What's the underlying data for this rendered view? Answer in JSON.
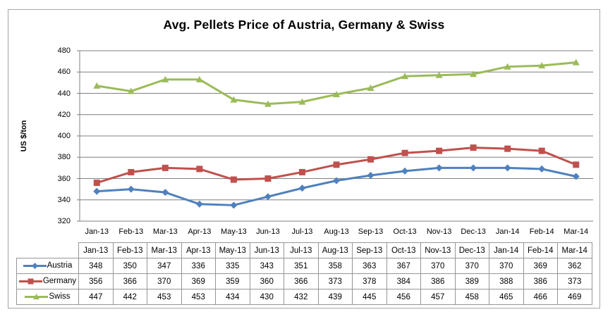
{
  "chart_data": {
    "type": "line",
    "title": "Avg. Pellets Price of Austria, Germany & Swiss",
    "ylabel": "US $/ton",
    "xlabel": "",
    "ylim": [
      320,
      480
    ],
    "ytick_step": 20,
    "grid": true,
    "legend_position": "table-left",
    "categories": [
      "Jan-13",
      "Feb-13",
      "Mar-13",
      "Apr-13",
      "May-13",
      "Jun-13",
      "Jul-13",
      "Aug-13",
      "Sep-13",
      "Oct-13",
      "Nov-13",
      "Dec-13",
      "Jan-14",
      "Feb-14",
      "Mar-14"
    ],
    "series": [
      {
        "name": "Austria",
        "marker": "diamond",
        "color": "#4F81BD",
        "values": [
          348,
          350,
          347,
          336,
          335,
          343,
          351,
          358,
          363,
          367,
          370,
          370,
          370,
          369,
          362
        ]
      },
      {
        "name": "Germany",
        "marker": "square",
        "color": "#C0504D",
        "values": [
          356,
          366,
          370,
          369,
          359,
          360,
          366,
          373,
          378,
          384,
          386,
          389,
          388,
          386,
          373
        ]
      },
      {
        "name": "Swiss",
        "marker": "triangle",
        "color": "#9BBB59",
        "values": [
          447,
          442,
          453,
          453,
          434,
          430,
          432,
          439,
          445,
          456,
          457,
          458,
          465,
          466,
          469
        ]
      }
    ]
  },
  "style_colors": {
    "gridline": "#7f7f7f",
    "axis": "#7f7f7f",
    "table_border": "#969696",
    "frame_border": "#a6a6a6",
    "text": "#000000"
  }
}
